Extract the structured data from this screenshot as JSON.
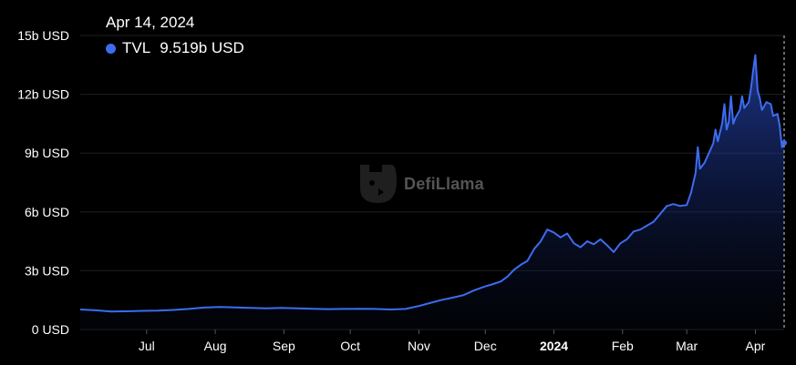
{
  "tooltip": {
    "date": "Apr 14, 2024",
    "series_name": "TVL",
    "value": "9.519b USD"
  },
  "watermark": {
    "text": "DefiLlama"
  },
  "colors": {
    "line": "#3d6cf0",
    "background": "#000000",
    "grid": "#1f1f1f",
    "text": "#ffffff"
  },
  "chart_data": {
    "type": "area",
    "ylim": [
      0,
      15
    ],
    "y_ticks": [
      {
        "value": 0,
        "label": "0 USD"
      },
      {
        "value": 3,
        "label": "3b USD"
      },
      {
        "value": 6,
        "label": "6b USD"
      },
      {
        "value": 9,
        "label": "9b USD"
      },
      {
        "value": 12,
        "label": "12b USD"
      },
      {
        "value": 15,
        "label": "15b USD"
      }
    ],
    "x_ticks": [
      {
        "date": "2023-07-01",
        "label": "Jul",
        "bold": false
      },
      {
        "date": "2023-08-01",
        "label": "Aug",
        "bold": false
      },
      {
        "date": "2023-09-01",
        "label": "Sep",
        "bold": false
      },
      {
        "date": "2023-10-01",
        "label": "Oct",
        "bold": false
      },
      {
        "date": "2023-11-01",
        "label": "Nov",
        "bold": false
      },
      {
        "date": "2023-12-01",
        "label": "Dec",
        "bold": false
      },
      {
        "date": "2024-01-01",
        "label": "2024",
        "bold": true
      },
      {
        "date": "2024-02-01",
        "label": "Feb",
        "bold": false
      },
      {
        "date": "2024-03-01",
        "label": "Mar",
        "bold": false
      },
      {
        "date": "2024-04-01",
        "label": "Apr",
        "bold": false
      }
    ],
    "x_range": [
      "2023-06-01",
      "2024-04-14"
    ],
    "series": [
      {
        "name": "TVL",
        "points": [
          [
            "2023-06-01",
            1.02
          ],
          [
            "2023-06-08",
            0.98
          ],
          [
            "2023-06-15",
            0.92
          ],
          [
            "2023-06-22",
            0.93
          ],
          [
            "2023-06-29",
            0.95
          ],
          [
            "2023-07-06",
            0.96
          ],
          [
            "2023-07-13",
            1.0
          ],
          [
            "2023-07-20",
            1.05
          ],
          [
            "2023-07-27",
            1.12
          ],
          [
            "2023-08-03",
            1.15
          ],
          [
            "2023-08-10",
            1.13
          ],
          [
            "2023-08-17",
            1.1
          ],
          [
            "2023-08-24",
            1.08
          ],
          [
            "2023-08-31",
            1.1
          ],
          [
            "2023-09-07",
            1.08
          ],
          [
            "2023-09-14",
            1.06
          ],
          [
            "2023-09-21",
            1.04
          ],
          [
            "2023-09-28",
            1.05
          ],
          [
            "2023-10-05",
            1.06
          ],
          [
            "2023-10-12",
            1.05
          ],
          [
            "2023-10-19",
            1.02
          ],
          [
            "2023-10-26",
            1.05
          ],
          [
            "2023-11-01",
            1.2
          ],
          [
            "2023-11-06",
            1.35
          ],
          [
            "2023-11-11",
            1.5
          ],
          [
            "2023-11-16",
            1.62
          ],
          [
            "2023-11-21",
            1.75
          ],
          [
            "2023-11-26",
            2.0
          ],
          [
            "2023-12-01",
            2.2
          ],
          [
            "2023-12-04",
            2.3
          ],
          [
            "2023-12-08",
            2.45
          ],
          [
            "2023-12-11",
            2.7
          ],
          [
            "2023-12-14",
            3.05
          ],
          [
            "2023-12-17",
            3.3
          ],
          [
            "2023-12-20",
            3.5
          ],
          [
            "2023-12-23",
            4.1
          ],
          [
            "2023-12-26",
            4.5
          ],
          [
            "2023-12-29",
            5.1
          ],
          [
            "2024-01-01",
            4.95
          ],
          [
            "2024-01-04",
            4.7
          ],
          [
            "2024-01-07",
            4.9
          ],
          [
            "2024-01-10",
            4.4
          ],
          [
            "2024-01-13",
            4.2
          ],
          [
            "2024-01-16",
            4.5
          ],
          [
            "2024-01-19",
            4.35
          ],
          [
            "2024-01-22",
            4.6
          ],
          [
            "2024-01-25",
            4.3
          ],
          [
            "2024-01-28",
            3.95
          ],
          [
            "2024-01-31",
            4.4
          ],
          [
            "2024-02-03",
            4.6
          ],
          [
            "2024-02-06",
            5.0
          ],
          [
            "2024-02-09",
            5.1
          ],
          [
            "2024-02-12",
            5.3
          ],
          [
            "2024-02-15",
            5.5
          ],
          [
            "2024-02-18",
            5.9
          ],
          [
            "2024-02-21",
            6.3
          ],
          [
            "2024-02-24",
            6.4
          ],
          [
            "2024-02-27",
            6.3
          ],
          [
            "2024-03-01",
            6.35
          ],
          [
            "2024-03-03",
            7.0
          ],
          [
            "2024-03-05",
            8.0
          ],
          [
            "2024-03-06",
            9.3
          ],
          [
            "2024-03-07",
            8.2
          ],
          [
            "2024-03-09",
            8.5
          ],
          [
            "2024-03-11",
            9.0
          ],
          [
            "2024-03-13",
            9.5
          ],
          [
            "2024-03-14",
            10.2
          ],
          [
            "2024-03-15",
            9.6
          ],
          [
            "2024-03-17",
            10.5
          ],
          [
            "2024-03-18",
            11.5
          ],
          [
            "2024-03-19",
            10.2
          ],
          [
            "2024-03-20",
            10.6
          ],
          [
            "2024-03-21",
            11.9
          ],
          [
            "2024-03-22",
            10.5
          ],
          [
            "2024-03-23",
            10.8
          ],
          [
            "2024-03-25",
            11.2
          ],
          [
            "2024-03-26",
            11.9
          ],
          [
            "2024-03-27",
            11.3
          ],
          [
            "2024-03-29",
            11.6
          ],
          [
            "2024-03-30",
            12.3
          ],
          [
            "2024-03-31",
            13.2
          ],
          [
            "2024-04-01",
            14.0
          ],
          [
            "2024-04-02",
            12.2
          ],
          [
            "2024-04-03",
            11.8
          ],
          [
            "2024-04-04",
            11.2
          ],
          [
            "2024-04-06",
            11.6
          ],
          [
            "2024-04-08",
            11.5
          ],
          [
            "2024-04-09",
            10.9
          ],
          [
            "2024-04-11",
            11.0
          ],
          [
            "2024-04-12",
            10.4
          ],
          [
            "2024-04-13",
            9.3
          ],
          [
            "2024-04-14",
            9.519
          ]
        ]
      }
    ]
  }
}
